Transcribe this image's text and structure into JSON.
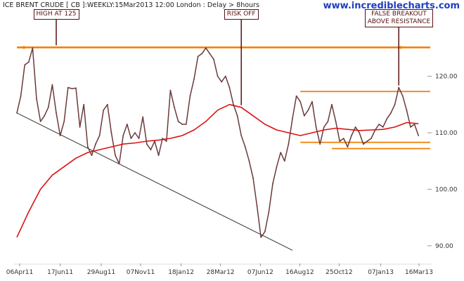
{
  "header": {
    "title": "ICE BRENT CRUDE [ CB ]:WEEKLY:15Mar2013 12:00 London : Delay > 8hours",
    "brand": "www.incrediblecharts.com"
  },
  "colors": {
    "price": "#6b3a3a",
    "moving_average": "#dd1111",
    "resistance": "#f07d00",
    "trendline": "#333333",
    "callout": "#5a1010",
    "brand": "#1f3fbf"
  },
  "chart_data": {
    "type": "line",
    "ylim": [
      87,
      132
    ],
    "y_ticks": [
      90,
      100,
      110,
      120
    ],
    "y_tick_labels": [
      "90.00",
      "100.00",
      "110.00",
      "120.00"
    ],
    "x_ticks": [
      {
        "label": "06Apr11",
        "x": "2011-04-06"
      },
      {
        "label": "17Jun11",
        "x": "2011-06-17"
      },
      {
        "label": "29Aug11",
        "x": "2011-08-29"
      },
      {
        "label": "07Nov11",
        "x": "2011-11-07"
      },
      {
        "label": "18Jan12",
        "x": "2012-01-18"
      },
      {
        "label": "28Mar12",
        "x": "2012-03-28"
      },
      {
        "label": "07Jun12",
        "x": "2012-06-07"
      },
      {
        "label": "16Aug12",
        "x": "2012-08-16"
      },
      {
        "label": "25Oct12",
        "x": "2012-10-25"
      },
      {
        "label": "07Jan13",
        "x": "2013-01-07"
      },
      {
        "label": "16Mar13",
        "x": "2013-03-16"
      }
    ],
    "series": [
      {
        "role": "price",
        "x": [
          "2011-04-01",
          "2011-04-08",
          "2011-04-15",
          "2011-04-22",
          "2011-04-29",
          "2011-05-06",
          "2011-05-13",
          "2011-05-20",
          "2011-05-27",
          "2011-06-03",
          "2011-06-10",
          "2011-06-17",
          "2011-06-24",
          "2011-07-01",
          "2011-07-08",
          "2011-07-15",
          "2011-07-22",
          "2011-07-29",
          "2011-08-05",
          "2011-08-12",
          "2011-08-19",
          "2011-08-26",
          "2011-09-02",
          "2011-09-09",
          "2011-09-16",
          "2011-09-23",
          "2011-09-30",
          "2011-10-07",
          "2011-10-14",
          "2011-10-21",
          "2011-10-28",
          "2011-11-04",
          "2011-11-11",
          "2011-11-18",
          "2011-11-25",
          "2011-12-02",
          "2011-12-09",
          "2011-12-16",
          "2011-12-23",
          "2011-12-30",
          "2012-01-06",
          "2012-01-13",
          "2012-01-20",
          "2012-01-27",
          "2012-02-03",
          "2012-02-10",
          "2012-02-17",
          "2012-02-24",
          "2012-03-02",
          "2012-03-09",
          "2012-03-16",
          "2012-03-23",
          "2012-03-30",
          "2012-04-06",
          "2012-04-13",
          "2012-04-20",
          "2012-04-27",
          "2012-05-04",
          "2012-05-11",
          "2012-05-18",
          "2012-05-25",
          "2012-06-01",
          "2012-06-08",
          "2012-06-15",
          "2012-06-22",
          "2012-06-29",
          "2012-07-06",
          "2012-07-13",
          "2012-07-20",
          "2012-07-27",
          "2012-08-03",
          "2012-08-10",
          "2012-08-17",
          "2012-08-24",
          "2012-08-31",
          "2012-09-07",
          "2012-09-14",
          "2012-09-21",
          "2012-09-28",
          "2012-10-05",
          "2012-10-12",
          "2012-10-19",
          "2012-10-26",
          "2012-11-02",
          "2012-11-09",
          "2012-11-16",
          "2012-11-23",
          "2012-11-30",
          "2012-12-07",
          "2012-12-14",
          "2012-12-21",
          "2012-12-28",
          "2013-01-04",
          "2013-01-11",
          "2013-01-18",
          "2013-01-25",
          "2013-02-01",
          "2013-02-08",
          "2013-02-15",
          "2013-02-22",
          "2013-03-01",
          "2013-03-08",
          "2013-03-15"
        ],
        "values": [
          113.5,
          116.5,
          122.0,
          122.5,
          125.0,
          116.0,
          112.0,
          113.0,
          114.5,
          118.5,
          113.5,
          109.5,
          112.0,
          118.0,
          117.8,
          117.9,
          111.0,
          115.0,
          107.5,
          106.0,
          108.0,
          109.5,
          114.0,
          115.0,
          110.0,
          106.0,
          104.5,
          109.5,
          111.5,
          109.0,
          110.0,
          109.0,
          112.8,
          108.0,
          107.0,
          108.5,
          106.0,
          109.0,
          108.5,
          117.5,
          114.5,
          112.0,
          111.5,
          111.5,
          116.5,
          119.5,
          123.5,
          124.0,
          125.0,
          124.0,
          123.0,
          120.0,
          119.0,
          120.0,
          118.0,
          115.0,
          113.0,
          109.5,
          107.5,
          105.0,
          102.0,
          97.0,
          91.5,
          92.5,
          96.0,
          101.0,
          104.0,
          106.5,
          105.0,
          108.0,
          112.5,
          116.5,
          115.5,
          113.0,
          114.0,
          115.5,
          111.0,
          108.0,
          111.0,
          112.0,
          115.0,
          112.0,
          108.5,
          109.0,
          107.5,
          109.5,
          111.0,
          110.0,
          108.0,
          108.5,
          109.0,
          110.5,
          111.5,
          111.0,
          112.5,
          113.5,
          115.0,
          118.0,
          116.5,
          114.0,
          111.0,
          111.5,
          109.5
        ]
      },
      {
        "role": "moving_average",
        "x": [
          "2011-04-01",
          "2011-04-22",
          "2011-05-13",
          "2011-06-03",
          "2011-06-24",
          "2011-07-15",
          "2011-08-05",
          "2011-08-26",
          "2011-09-16",
          "2011-10-07",
          "2011-10-28",
          "2011-11-18",
          "2011-12-09",
          "2011-12-30",
          "2012-01-20",
          "2012-02-10",
          "2012-03-02",
          "2012-03-23",
          "2012-04-13",
          "2012-05-04",
          "2012-05-25",
          "2012-06-15",
          "2012-07-06",
          "2012-07-27",
          "2012-08-17",
          "2012-09-07",
          "2012-09-28",
          "2012-10-19",
          "2012-11-09",
          "2012-11-30",
          "2012-12-21",
          "2013-01-11",
          "2013-02-01",
          "2013-02-22",
          "2013-03-15"
        ],
        "values": [
          91.5,
          96.0,
          100.0,
          102.5,
          104.0,
          105.5,
          106.5,
          107.0,
          107.5,
          108.0,
          108.2,
          108.5,
          108.7,
          109.0,
          109.5,
          110.5,
          112.0,
          114.0,
          115.0,
          114.5,
          113.0,
          111.5,
          110.5,
          110.0,
          109.5,
          110.0,
          110.5,
          110.8,
          110.6,
          110.4,
          110.5,
          110.6,
          111.0,
          111.8,
          111.6
        ]
      }
    ],
    "lines": [
      {
        "role": "resistance",
        "x": [
          "2011-04-01",
          "2013-04-05"
        ],
        "values": [
          125.1,
          125.1
        ]
      },
      {
        "role": "resistance",
        "x": [
          "2012-08-17",
          "2013-04-05"
        ],
        "values": [
          117.3,
          117.3
        ]
      },
      {
        "role": "resistance",
        "x": [
          "2012-08-17",
          "2013-04-05"
        ],
        "values": [
          108.3,
          108.3
        ]
      },
      {
        "role": "resistance",
        "x": [
          "2012-10-12",
          "2013-04-05"
        ],
        "values": [
          107.2,
          107.2
        ]
      },
      {
        "role": "trendline",
        "x": [
          "2011-04-01",
          "2012-08-03"
        ],
        "values": [
          113.5,
          89.2
        ]
      }
    ],
    "annotations": [
      {
        "text": "HIGH AT 125",
        "x": "2011-06-10",
        "y": 125.1
      },
      {
        "text": "RISK OFF",
        "x": "2012-05-04",
        "y": 114.5
      },
      {
        "text": "FALSE BREAKOUT\nABOVE RESISTANCE",
        "x": "2013-02-08",
        "y": 118.0
      }
    ]
  }
}
